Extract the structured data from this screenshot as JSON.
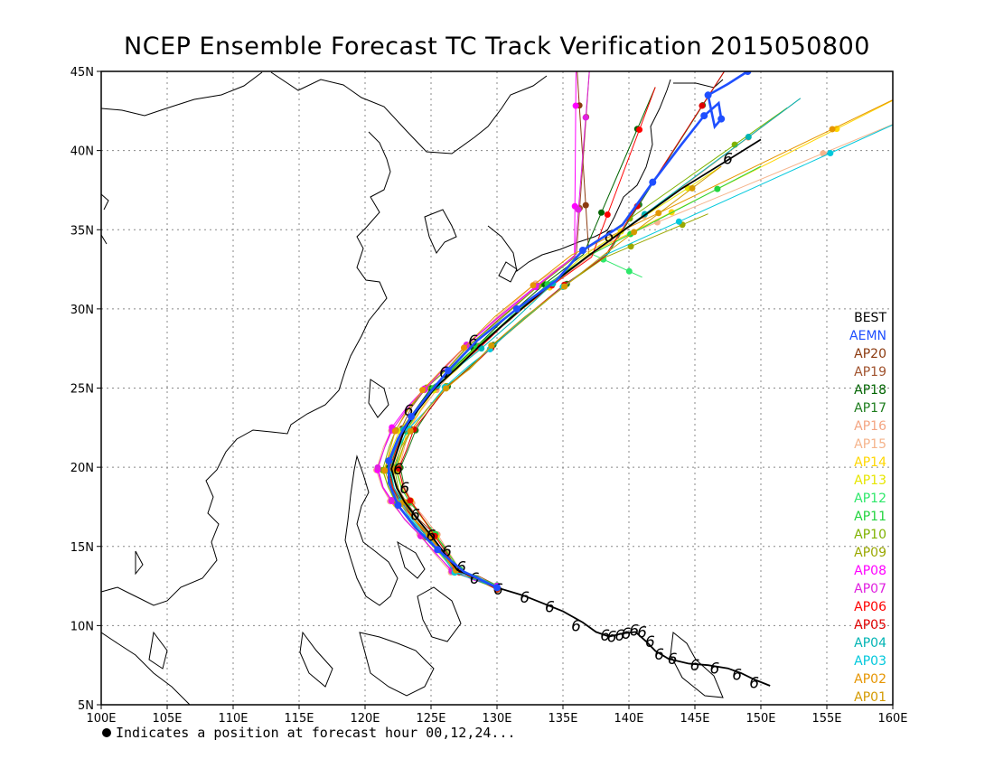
{
  "chart_data": {
    "type": "line",
    "title": "NCEP Ensemble Forecast TC Track Verification 2015050800",
    "footnote": "Indicates a position at forecast hour 00,12,24...",
    "x_axis": {
      "range": [
        100,
        160
      ],
      "ticks": [
        100,
        105,
        110,
        115,
        120,
        125,
        130,
        135,
        140,
        145,
        150,
        155,
        160
      ],
      "tick_labels": [
        "100E",
        "105E",
        "110E",
        "115E",
        "120E",
        "125E",
        "130E",
        "135E",
        "140E",
        "145E",
        "150E",
        "155E",
        "160E"
      ]
    },
    "y_axis": {
      "range": [
        5,
        45
      ],
      "ticks": [
        5,
        10,
        15,
        20,
        25,
        30,
        35,
        40,
        45
      ],
      "tick_labels": [
        "5N",
        "10N",
        "15N",
        "20N",
        "25N",
        "30N",
        "35N",
        "40N",
        "45N"
      ]
    },
    "grid": true,
    "legend_position": "right",
    "legend": [
      {
        "name": "BEST",
        "color": "#000000"
      },
      {
        "name": "AEMN",
        "color": "#1f4fff"
      },
      {
        "name": "AP20",
        "color": "#8b3a0f"
      },
      {
        "name": "AP19",
        "color": "#a0522d"
      },
      {
        "name": "AP18",
        "color": "#006400"
      },
      {
        "name": "AP17",
        "color": "#1e7d1e"
      },
      {
        "name": "AP16",
        "color": "#f4a582"
      },
      {
        "name": "AP15",
        "color": "#f5b48c"
      },
      {
        "name": "AP14",
        "color": "#ffd700"
      },
      {
        "name": "AP13",
        "color": "#e6e600"
      },
      {
        "name": "AP12",
        "color": "#2ee86a"
      },
      {
        "name": "AP11",
        "color": "#22d43e"
      },
      {
        "name": "AP10",
        "color": "#7fb200"
      },
      {
        "name": "AP09",
        "color": "#9aa800"
      },
      {
        "name": "AP08",
        "color": "#ff00ff"
      },
      {
        "name": "AP07",
        "color": "#e020e0"
      },
      {
        "name": "AP06",
        "color": "#ff0000"
      },
      {
        "name": "AP05",
        "color": "#e00000"
      },
      {
        "name": "AP04",
        "color": "#00b4b4"
      },
      {
        "name": "AP03",
        "color": "#00c8dc"
      },
      {
        "name": "AP02",
        "color": "#e69500"
      },
      {
        "name": "AP01",
        "color": "#d49a00"
      }
    ],
    "best_track": [
      [
        150.7,
        6.2
      ],
      [
        149.5,
        6.6
      ],
      [
        148.5,
        7.0
      ],
      [
        147.5,
        7.3
      ],
      [
        146.0,
        7.5
      ],
      [
        144.5,
        7.6
      ],
      [
        143.0,
        7.9
      ],
      [
        142.0,
        8.4
      ],
      [
        141.3,
        9.0
      ],
      [
        140.5,
        9.6
      ],
      [
        139.5,
        9.5
      ],
      [
        138.5,
        9.3
      ],
      [
        137.5,
        9.6
      ],
      [
        136.5,
        10.2
      ],
      [
        135.0,
        10.9
      ],
      [
        133.5,
        11.4
      ],
      [
        132.0,
        11.9
      ],
      [
        130.0,
        12.4
      ],
      [
        128.5,
        13.0
      ],
      [
        127.0,
        13.5
      ],
      [
        126.0,
        14.6
      ],
      [
        125.0,
        15.7
      ],
      [
        123.9,
        16.8
      ],
      [
        123.0,
        17.8
      ],
      [
        122.4,
        18.7
      ],
      [
        122.0,
        19.9
      ],
      [
        122.5,
        21.2
      ],
      [
        123.0,
        22.4
      ],
      [
        124.0,
        23.6
      ],
      [
        125.3,
        25.0
      ],
      [
        127.0,
        26.3
      ],
      [
        128.6,
        27.6
      ],
      [
        131.0,
        29.4
      ],
      [
        134.0,
        31.5
      ],
      [
        137.0,
        33.4
      ],
      [
        140.5,
        35.5
      ],
      [
        144.0,
        37.6
      ],
      [
        147.5,
        39.4
      ],
      [
        150.0,
        40.7
      ]
    ],
    "best_labels_at": [
      [
        149.5,
        6.4
      ],
      [
        148.2,
        6.9
      ],
      [
        146.5,
        7.3
      ],
      [
        145.0,
        7.5
      ],
      [
        143.3,
        7.9
      ],
      [
        142.3,
        8.2
      ],
      [
        141.6,
        9.0
      ],
      [
        141.0,
        9.6
      ],
      [
        140.4,
        9.7
      ],
      [
        139.8,
        9.5
      ],
      [
        139.3,
        9.4
      ],
      [
        138.7,
        9.3
      ],
      [
        138.2,
        9.4
      ],
      [
        136.0,
        10.0
      ],
      [
        134.0,
        11.2
      ],
      [
        132.1,
        11.8
      ],
      [
        130.1,
        12.3
      ],
      [
        128.3,
        13.0
      ],
      [
        127.3,
        13.7
      ],
      [
        126.2,
        14.7
      ],
      [
        125.0,
        15.7
      ],
      [
        123.8,
        17.0
      ],
      [
        123.0,
        18.7
      ],
      [
        122.5,
        19.9
      ],
      [
        123.3,
        23.6
      ],
      [
        126.0,
        26.0
      ],
      [
        128.2,
        28.0
      ],
      [
        138.5,
        34.6
      ],
      [
        147.5,
        39.5
      ]
    ],
    "aemn_track": [
      [
        130.0,
        12.4
      ],
      [
        127.5,
        13.4
      ],
      [
        125.5,
        14.8
      ],
      [
        123.8,
        16.2
      ],
      [
        122.5,
        17.6
      ],
      [
        121.8,
        19.0
      ],
      [
        121.8,
        20.4
      ],
      [
        122.5,
        21.8
      ],
      [
        123.5,
        23.2
      ],
      [
        125.0,
        24.8
      ],
      [
        126.3,
        26.1
      ],
      [
        128.5,
        28.0
      ],
      [
        131.5,
        30.0
      ],
      [
        134.5,
        31.8
      ],
      [
        136.5,
        33.7
      ],
      [
        139.5,
        35.3
      ],
      [
        141.8,
        38.0
      ],
      [
        144.0,
        40.4
      ],
      [
        145.7,
        42.2
      ],
      [
        146.8,
        43.0
      ],
      [
        147.0,
        42.0
      ],
      [
        146.5,
        41.5
      ],
      [
        146.0,
        43.5
      ],
      [
        147.5,
        44.2
      ],
      [
        149.0,
        45.0
      ]
    ]
  }
}
